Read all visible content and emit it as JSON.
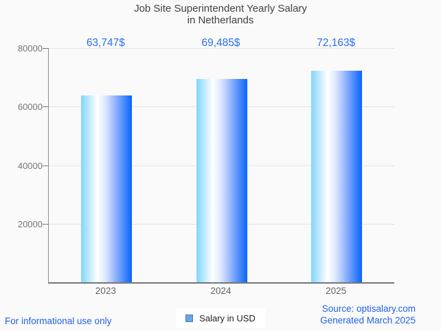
{
  "title": {
    "line1": "Job Site Superintendent Yearly Salary",
    "line2": "in Netherlands"
  },
  "chart_data": {
    "type": "bar",
    "title": "Job Site Superintendent Yearly Salary in Netherlands",
    "categories": [
      "2023",
      "2024",
      "2025"
    ],
    "values": [
      63747,
      69485,
      72163
    ],
    "value_labels": [
      "63,747$",
      "69,485$",
      "72,163$"
    ],
    "series": [
      {
        "name": "Salary in USD",
        "values": [
          63747,
          69485,
          72163
        ]
      }
    ],
    "xlabel": "",
    "ylabel": "",
    "ylim": [
      0,
      80000
    ],
    "yticks": [
      20000,
      40000,
      60000,
      80000
    ],
    "grid": true,
    "legend": {
      "label": "Salary in USD",
      "position": "bottom"
    }
  },
  "footer": {
    "disclaimer": "For informational use only",
    "source_line1": "Source: optisalary.com",
    "source_line2": "Generated March 2025"
  },
  "colors": {
    "background": "#fafafa",
    "title_text": "#3f4045",
    "value_label_text": "#2a6ff2",
    "footer_text": "#2161e9",
    "axis_line": "#8c8c8c",
    "baseline": "#767676",
    "gridline": "#e4e4e4",
    "y_tick_text": "#757575",
    "x_tick_text": "#5f6368",
    "legend_swatch_fill": "#6fa3e3",
    "legend_swatch_border": "#3a7ec7",
    "bar_gradient": [
      "#82d5fe",
      "#ffffff",
      "#dce7fe",
      "#a9c3fd",
      "#6d9ffc",
      "#3a82fc",
      "#0b63fb"
    ],
    "bar_gradient_stops": [
      "0%",
      "32%",
      "48%",
      "62%",
      "76%",
      "88%",
      "100%"
    ]
  }
}
